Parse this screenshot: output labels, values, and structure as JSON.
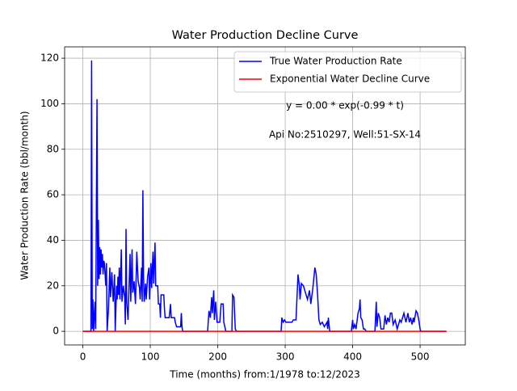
{
  "chart_data": {
    "type": "line",
    "title": "Water Production Decline Curve",
    "x_label": "Time (months) from:1/1978 to:12/2023",
    "y_label": "Water Production Rate (bbl/month)",
    "annotations": [
      "y = 0.00 * exp(-0.99 * t)",
      "Api No:2510297, Well:51-SX-14"
    ],
    "xlim": [
      -27,
      567
    ],
    "ylim": [
      -6,
      125
    ],
    "xticks": [
      0,
      100,
      200,
      300,
      400,
      500
    ],
    "yticks": [
      0,
      20,
      40,
      60,
      80,
      100,
      120
    ],
    "grid": true,
    "legend": "upper right",
    "series": [
      {
        "name": "True Water Production Rate",
        "color": "#0000ff",
        "x": [
          0,
          12,
          13,
          14,
          15,
          16,
          18,
          19,
          21,
          22,
          23,
          24,
          25,
          26,
          27,
          28,
          29,
          30,
          31,
          32,
          34,
          35,
          36,
          38,
          40,
          41,
          43,
          45,
          47,
          48,
          50,
          51,
          52,
          53,
          54,
          55,
          57,
          58,
          60,
          62,
          63,
          64,
          65,
          67,
          68,
          70,
          71,
          73,
          74,
          76,
          78,
          80,
          81,
          82,
          84,
          85,
          87,
          88,
          89,
          90,
          91,
          93,
          94,
          96,
          98,
          99,
          101,
          102,
          104,
          105,
          107,
          108,
          111,
          112,
          114,
          115,
          116,
          120,
          121,
          122,
          128,
          130,
          131,
          136,
          137,
          139,
          145,
          146,
          147,
          148,
          185,
          187,
          189,
          191,
          192,
          194,
          195,
          197,
          199,
          203,
          205,
          208,
          209,
          212,
          221,
          222,
          224,
          225,
          226,
          228,
          294,
          295,
          297,
          299,
          301,
          310,
          312,
          316,
          319,
          321,
          322,
          324,
          327,
          330,
          333,
          336,
          338,
          341,
          344,
          346,
          348,
          350,
          352,
          355,
          358,
          362,
          363,
          364,
          366,
          398,
          400,
          401,
          403,
          405,
          408,
          410,
          411,
          412,
          414,
          416,
          418,
          420,
          433,
          435,
          436,
          438,
          440,
          442,
          446,
          448,
          450,
          452,
          454,
          456,
          458,
          460,
          463,
          466,
          470,
          472,
          476,
          479,
          482,
          484,
          486,
          488,
          490,
          491,
          494,
          496,
          498,
          500,
          501,
          539
        ],
        "values": [
          0,
          0,
          119,
          1,
          14,
          0,
          13,
          1,
          102,
          20,
          49,
          23,
          37,
          25,
          36,
          28,
          34,
          25,
          31,
          30,
          20,
          30,
          0,
          10,
          28,
          15,
          26,
          13,
          25,
          0,
          20,
          14,
          24,
          16,
          28,
          14,
          36,
          13,
          20,
          15,
          3,
          45,
          13,
          5,
          15,
          34,
          13,
          36,
          17,
          22,
          12,
          35,
          28,
          22,
          19,
          14,
          28,
          13,
          62,
          24,
          13,
          21,
          14,
          24,
          28,
          14,
          30,
          19,
          35,
          21,
          39,
          20,
          20,
          12,
          12,
          6,
          16,
          16,
          10,
          6,
          6,
          12,
          6,
          6,
          4,
          2,
          2,
          8,
          2,
          0,
          0,
          9,
          6,
          15,
          8,
          18,
          5,
          13,
          4,
          4,
          12,
          12,
          4,
          0,
          0,
          16,
          15,
          8,
          1,
          0,
          0,
          6,
          4,
          5,
          4,
          4,
          5,
          5,
          25,
          20,
          14,
          21,
          20,
          17,
          14,
          18,
          12,
          19,
          28,
          25,
          16,
          5,
          3,
          4,
          2,
          4,
          1,
          6,
          0,
          0,
          5,
          1,
          3,
          1,
          8,
          10,
          14,
          6,
          5,
          1,
          1,
          0,
          0,
          13,
          2,
          8,
          6,
          1,
          1,
          7,
          3,
          6,
          4,
          8,
          8,
          3,
          5,
          1,
          5,
          4,
          8,
          4,
          8,
          4,
          6,
          3,
          6,
          4,
          9,
          8,
          5,
          1,
          0,
          0
        ]
      },
      {
        "name": "Exponential Water Decline Curve",
        "color": "#ff0000",
        "x": [
          0,
          539
        ],
        "values": [
          0,
          0
        ]
      }
    ]
  }
}
